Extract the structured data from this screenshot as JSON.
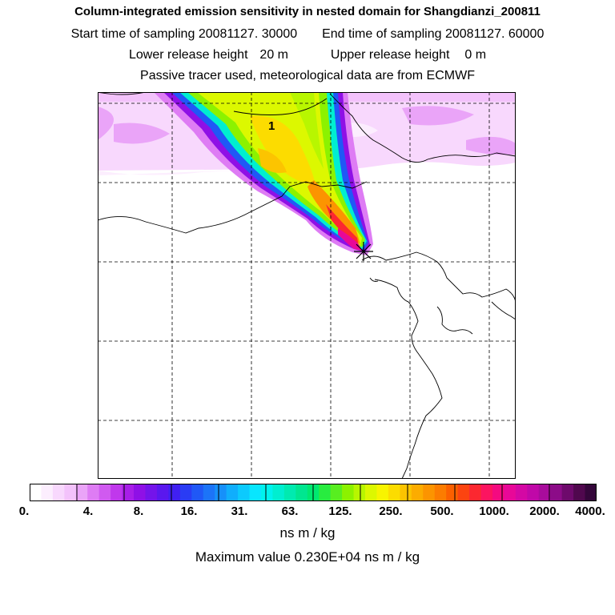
{
  "header": {
    "title": "Column-integrated emission sensitivity in nested domain for Shangdianzi_200811",
    "sampling": {
      "start_label": "Start time of sampling",
      "start_value": "20081127. 30000",
      "end_label": "End time of sampling",
      "end_value": "20081127. 60000"
    },
    "release": {
      "lower_label": "Lower release height",
      "lower_value": "20 m",
      "upper_label": "Upper release height",
      "upper_value": "0 m"
    },
    "note": "Passive tracer used, meteorological data are from ECMWF"
  },
  "map": {
    "max_marker_label": "1",
    "release_marker_icon": "asterisk-star-icon"
  },
  "colorbar": {
    "tick_labels": [
      "0.",
      "4.",
      "8.",
      "16.",
      "31.",
      "63.",
      "125.",
      "250.",
      "500.",
      "1000.",
      "2000.",
      "4000."
    ],
    "colors": [
      "#ffffff",
      "#fceefe",
      "#f8d8fd",
      "#f3c2fb",
      "#eaa4f8",
      "#de7cf4",
      "#d05af0",
      "#c038ec",
      "#a81ee8",
      "#8f10e6",
      "#7414ea",
      "#5a18ee",
      "#4020f2",
      "#2a3cf4",
      "#2058f6",
      "#1c74f8",
      "#1690fa",
      "#10aefc",
      "#0ccafd",
      "#08e6fe",
      "#00f2ee",
      "#00eed0",
      "#00eab0",
      "#00e690",
      "#00e870",
      "#28ec40",
      "#58ee20",
      "#8cf200",
      "#b8f600",
      "#dcf800",
      "#f8f400",
      "#fcdc00",
      "#fcc400",
      "#fcac00",
      "#fc9400",
      "#fc7c00",
      "#fc6000",
      "#fc4410",
      "#fc2830",
      "#fc1460",
      "#f40a80",
      "#e80898",
      "#d408a4",
      "#c008a8",
      "#a80c9c",
      "#8c0c88",
      "#6e0a6c",
      "#50084e",
      "#34063a"
    ],
    "units": "ns m / kg"
  },
  "summary": {
    "max_label": "Maximum value",
    "max_value": "0.230E+04",
    "max_units": "ns m / kg"
  }
}
